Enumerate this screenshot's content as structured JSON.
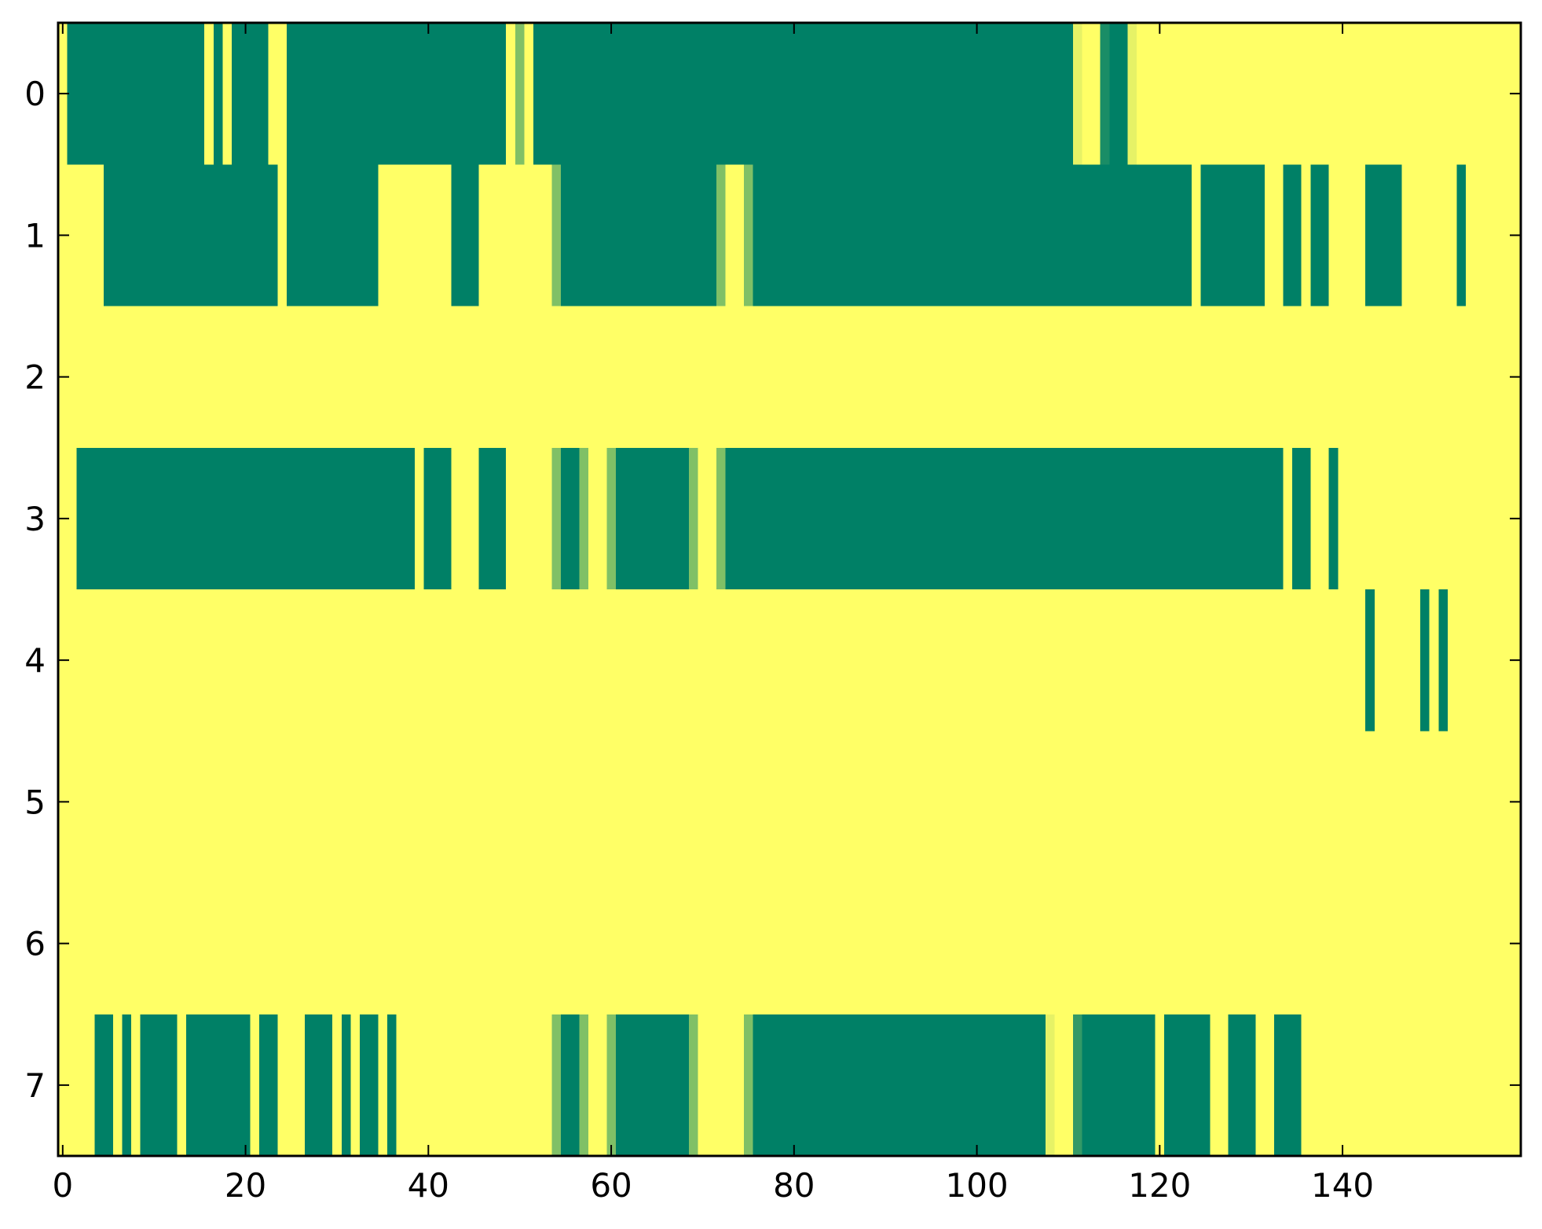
{
  "chart_data": {
    "type": "heatmap",
    "title": "",
    "xlabel": "",
    "ylabel": "",
    "xlim": [
      -0.5,
      159.5
    ],
    "ylim": [
      7.5,
      -0.5
    ],
    "x_ticks": [
      0,
      20,
      40,
      60,
      80,
      100,
      120,
      140
    ],
    "x_tick_labels": [
      "0",
      "20",
      "40",
      "60",
      "80",
      "100",
      "120",
      "140"
    ],
    "y_ticks": [
      0,
      1,
      2,
      3,
      4,
      5,
      6,
      7
    ],
    "y_tick_labels": [
      "0",
      "1",
      "2",
      "3",
      "4",
      "5",
      "6",
      "7"
    ],
    "grid": false,
    "colormap": "summer",
    "colors": {
      "low": "#008066",
      "high": "#ffff66",
      "mid_low": "#2a9466",
      "mid": "#80c066",
      "mid_high": "#e0f066"
    },
    "rows": [
      {
        "row": 0,
        "segments": [
          {
            "start": 1,
            "end": 15,
            "value": 0
          },
          {
            "start": 17,
            "end": 17,
            "value": 0
          },
          {
            "start": 19,
            "end": 22,
            "value": 0
          },
          {
            "start": 25,
            "end": 48,
            "value": 0
          },
          {
            "start": 50,
            "end": 50,
            "value": 0.5
          },
          {
            "start": 52,
            "end": 110,
            "value": 0
          },
          {
            "start": 111,
            "end": 111,
            "value": 0.9
          },
          {
            "start": 114,
            "end": 114,
            "value": 0.1
          },
          {
            "start": 115,
            "end": 116,
            "value": 0
          },
          {
            "start": 117,
            "end": 117,
            "value": 0.9
          }
        ]
      },
      {
        "row": 1,
        "segments": [
          {
            "start": 5,
            "end": 23,
            "value": 0
          },
          {
            "start": 25,
            "end": 34,
            "value": 0
          },
          {
            "start": 43,
            "end": 45,
            "value": 0
          },
          {
            "start": 54,
            "end": 54,
            "value": 0.5
          },
          {
            "start": 55,
            "end": 71,
            "value": 0
          },
          {
            "start": 72,
            "end": 72,
            "value": 0.5
          },
          {
            "start": 75,
            "end": 75,
            "value": 0.5
          },
          {
            "start": 76,
            "end": 123,
            "value": 0
          },
          {
            "start": 125,
            "end": 131,
            "value": 0
          },
          {
            "start": 134,
            "end": 135,
            "value": 0
          },
          {
            "start": 137,
            "end": 138,
            "value": 0
          },
          {
            "start": 143,
            "end": 146,
            "value": 0
          },
          {
            "start": 153,
            "end": 153,
            "value": 0
          }
        ]
      },
      {
        "row": 2,
        "segments": []
      },
      {
        "row": 3,
        "segments": [
          {
            "start": 2,
            "end": 38,
            "value": 0
          },
          {
            "start": 40,
            "end": 42,
            "value": 0
          },
          {
            "start": 46,
            "end": 48,
            "value": 0
          },
          {
            "start": 54,
            "end": 54,
            "value": 0.5
          },
          {
            "start": 55,
            "end": 56,
            "value": 0
          },
          {
            "start": 57,
            "end": 57,
            "value": 0.5
          },
          {
            "start": 60,
            "end": 60,
            "value": 0.5
          },
          {
            "start": 61,
            "end": 68,
            "value": 0
          },
          {
            "start": 69,
            "end": 69,
            "value": 0.5
          },
          {
            "start": 72,
            "end": 72,
            "value": 0.5
          },
          {
            "start": 73,
            "end": 133,
            "value": 0
          },
          {
            "start": 135,
            "end": 136,
            "value": 0
          },
          {
            "start": 139,
            "end": 139,
            "value": 0
          }
        ]
      },
      {
        "row": 4,
        "segments": [
          {
            "start": 143,
            "end": 143,
            "value": 0
          },
          {
            "start": 149,
            "end": 149,
            "value": 0
          },
          {
            "start": 151,
            "end": 151,
            "value": 0
          }
        ]
      },
      {
        "row": 5,
        "segments": []
      },
      {
        "row": 6,
        "segments": []
      },
      {
        "row": 7,
        "segments": [
          {
            "start": 4,
            "end": 5,
            "value": 0
          },
          {
            "start": 7,
            "end": 7,
            "value": 0
          },
          {
            "start": 9,
            "end": 12,
            "value": 0
          },
          {
            "start": 14,
            "end": 20,
            "value": 0
          },
          {
            "start": 22,
            "end": 23,
            "value": 0
          },
          {
            "start": 27,
            "end": 29,
            "value": 0
          },
          {
            "start": 31,
            "end": 31,
            "value": 0
          },
          {
            "start": 33,
            "end": 34,
            "value": 0
          },
          {
            "start": 36,
            "end": 36,
            "value": 0
          },
          {
            "start": 54,
            "end": 54,
            "value": 0.5
          },
          {
            "start": 55,
            "end": 56,
            "value": 0
          },
          {
            "start": 57,
            "end": 57,
            "value": 0.5
          },
          {
            "start": 60,
            "end": 60,
            "value": 0.5
          },
          {
            "start": 61,
            "end": 68,
            "value": 0
          },
          {
            "start": 69,
            "end": 69,
            "value": 0.5
          },
          {
            "start": 75,
            "end": 75,
            "value": 0.5
          },
          {
            "start": 76,
            "end": 107,
            "value": 0
          },
          {
            "start": 108,
            "end": 108,
            "value": 0.9
          },
          {
            "start": 111,
            "end": 111,
            "value": 0.2
          },
          {
            "start": 112,
            "end": 119,
            "value": 0
          },
          {
            "start": 121,
            "end": 125,
            "value": 0
          },
          {
            "start": 128,
            "end": 130,
            "value": 0
          },
          {
            "start": 133,
            "end": 135,
            "value": 0
          }
        ]
      }
    ]
  }
}
